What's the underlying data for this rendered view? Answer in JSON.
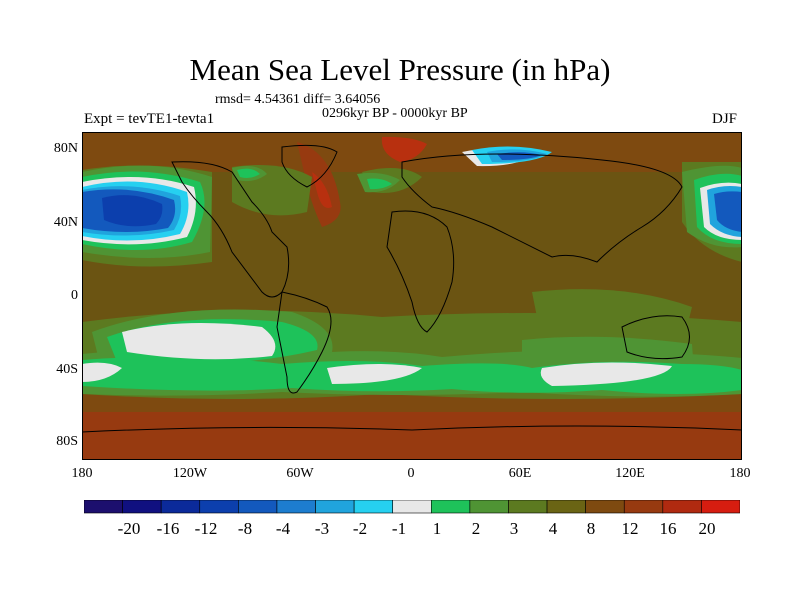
{
  "title": "Mean Sea Level Pressure (in hPa)",
  "stats": "rmsd= 4.54361 diff= 3.64056",
  "period": "0296kyr BP - 0000kyr BP",
  "experiment": "Expt = tevTE1-tevta1",
  "season": "DJF",
  "lat_labels": [
    "80N",
    "40N",
    "0",
    "40S",
    "80S"
  ],
  "lon_labels": [
    "180",
    "120W",
    "60W",
    "0",
    "60E",
    "120E",
    "180"
  ],
  "colorbar": {
    "labels": [
      "-20",
      "-16",
      "-12",
      "-8",
      "-4",
      "-3",
      "-2",
      "-1",
      "1",
      "2",
      "3",
      "4",
      "8",
      "12",
      "16",
      "20"
    ],
    "colors": [
      "#1c0f6e",
      "#101080",
      "#0b2a9a",
      "#0c3fad",
      "#1359bd",
      "#1d7dcf",
      "#20a4dd",
      "#26d0f0",
      "#e8e8e8",
      "#1ec25a",
      "#4f9434",
      "#5c7a20",
      "#6a6414",
      "#7e4a10",
      "#973a10",
      "#b02a10",
      "#d61d10"
    ]
  },
  "map_colors": {
    "background": "#6b5412",
    "dark_brown": "#7e4a10",
    "red_brown": "#973a10",
    "red": "#b8300f",
    "olive": "#5c7a20",
    "green": "#4f9434",
    "bright_green": "#1ec25a",
    "light_gray": "#e8e8e8",
    "cyan": "#26d0f0",
    "light_blue": "#20a4dd",
    "blue": "#1359bd",
    "dark_blue": "#0c3fad",
    "coast": "#000000"
  }
}
